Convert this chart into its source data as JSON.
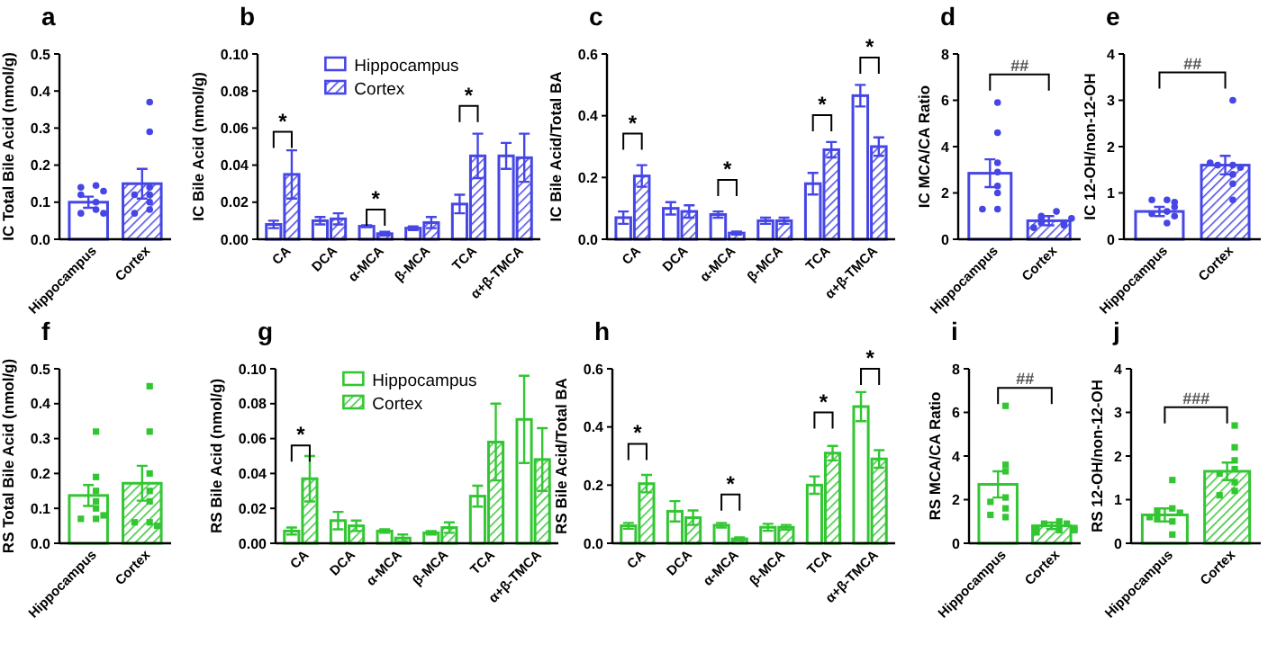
{
  "chart_data": [
    {
      "type": "bar",
      "title": "a",
      "ylabel": "IC Total Bile Acid (nmol/g)",
      "categories": [
        "Hippocampus",
        "Cortex"
      ],
      "ylim": [
        0,
        0.5
      ],
      "yticks": [
        {
          "value": 0,
          "label": "0.0"
        },
        0.1,
        0.2,
        0.3,
        0.4,
        0.5
      ],
      "series": [
        {
          "color": "#4646e6",
          "values": [
            0.1,
            0.15
          ],
          "errors": [
            0.015,
            0.04
          ]
        },
        {
          "type": "scatter",
          "color": "#4646e6",
          "marker": "circle",
          "x": [
            "Hippocampus",
            "Hippocampus",
            "Hippocampus",
            "Hippocampus",
            "Hippocampus",
            "Hippocampus",
            "Hippocampus",
            "Hippocampus",
            "Cortex",
            "Cortex",
            "Cortex",
            "Cortex",
            "Cortex",
            "Cortex",
            "Cortex",
            "Cortex"
          ],
          "values": [
            0.145,
            0.14,
            0.13,
            0.12,
            0.1,
            0.08,
            0.07,
            0.07,
            0.37,
            0.29,
            0.14,
            0.12,
            0.1,
            0.08,
            0.07,
            0.12
          ]
        }
      ]
    },
    {
      "type": "bar",
      "title": "b",
      "ylabel": "IC Bile Acid (nmol/g)",
      "categories": [
        "CA",
        "DCA",
        "α-MCA",
        "β-MCA",
        "TCA",
        "α+β-TMCA"
      ],
      "ylim": [
        0,
        0.1
      ],
      "yticks": [
        {
          "value": 0,
          "label": "0.00"
        },
        {
          "value": 0.02,
          "label": "0.02"
        },
        {
          "value": 0.04,
          "label": "0.04"
        },
        {
          "value": 0.06,
          "label": "0.06"
        },
        {
          "value": 0.08,
          "label": "0.08"
        },
        {
          "value": 0.1,
          "label": "0.10"
        }
      ],
      "legend": "top",
      "series": [
        {
          "name": "Hippocampus",
          "color": "#4646e6",
          "values": [
            0.008,
            0.01,
            0.007,
            0.006,
            0.019,
            0.045
          ],
          "errors": [
            0.002,
            0.002,
            0.0005,
            0.001,
            0.005,
            0.007
          ]
        },
        {
          "name": "Cortex",
          "color": "#4646e6",
          "values": [
            0.035,
            0.011,
            0.003,
            0.009,
            0.045,
            0.044
          ],
          "errors": [
            0.013,
            0.003,
            0.001,
            0.003,
            0.012,
            0.013
          ]
        }
      ],
      "annotations": [
        "*",
        "*",
        "*"
      ]
    },
    {
      "type": "bar",
      "title": "c",
      "ylabel": "IC Bile Acid/Total BA",
      "categories": [
        "CA",
        "DCA",
        "α-MCA",
        "β-MCA",
        "TCA",
        "α+β-TMCA"
      ],
      "ylim": [
        0,
        0.6
      ],
      "yticks": [
        {
          "value": 0,
          "label": "0.0"
        },
        {
          "value": 0.2,
          "label": "0.2"
        },
        {
          "value": 0.4,
          "label": "0.4"
        },
        {
          "value": 0.6,
          "label": "0.6"
        }
      ],
      "series": [
        {
          "color": "#4646e6",
          "values": [
            0.07,
            0.1,
            0.08,
            0.06,
            0.18,
            0.465
          ],
          "errors": [
            0.02,
            0.02,
            0.01,
            0.01,
            0.035,
            0.035
          ]
        },
        {
          "color": "#4646e6",
          "values": [
            0.205,
            0.09,
            0.02,
            0.06,
            0.29,
            0.3
          ],
          "errors": [
            0.035,
            0.02,
            0.005,
            0.01,
            0.025,
            0.03
          ]
        }
      ],
      "annotations": [
        "*",
        "*",
        "*",
        "*"
      ]
    },
    {
      "type": "bar",
      "title": "d",
      "ylabel": "IC MCA/CA Ratio",
      "categories": [
        "Hippocampus",
        "Cortex"
      ],
      "ylim": [
        0,
        8
      ],
      "yticks": [
        0,
        2,
        4,
        6,
        8
      ],
      "series": [
        {
          "color": "#4646e6",
          "values": [
            2.85,
            0.8
          ],
          "errors": [
            0.6,
            0.2
          ]
        },
        {
          "type": "scatter",
          "color": "#4646e6",
          "marker": "circle",
          "x": [
            "Hippocampus",
            "Hippocampus",
            "Hippocampus",
            "Hippocampus",
            "Hippocampus",
            "Hippocampus",
            "Hippocampus",
            "Hippocampus",
            "Cortex",
            "Cortex",
            "Cortex",
            "Cortex",
            "Cortex",
            "Cortex",
            "Cortex",
            "Cortex"
          ],
          "values": [
            5.9,
            4.6,
            3.3,
            2.3,
            2.0,
            1.3,
            1.3,
            2.9,
            1.2,
            1.0,
            0.9,
            0.7,
            0.7,
            0.6,
            0.5,
            0.9
          ]
        }
      ],
      "annotations": [
        "##"
      ]
    },
    {
      "type": "bar",
      "title": "e",
      "ylabel": "IC 12-OH/non-12-OH",
      "categories": [
        "Hippocampus",
        "Cortex"
      ],
      "ylim": [
        0,
        4
      ],
      "yticks": [
        0,
        1,
        2,
        3,
        4
      ],
      "series": [
        {
          "color": "#4646e6",
          "values": [
            0.6,
            1.6
          ],
          "errors": [
            0.1,
            0.2
          ]
        },
        {
          "type": "scatter",
          "color": "#4646e6",
          "marker": "circle",
          "x": [
            "Hippocampus",
            "Hippocampus",
            "Hippocampus",
            "Hippocampus",
            "Hippocampus",
            "Hippocampus",
            "Hippocampus",
            "Hippocampus",
            "Cortex",
            "Cortex",
            "Cortex",
            "Cortex",
            "Cortex",
            "Cortex",
            "Cortex",
            "Cortex"
          ],
          "values": [
            0.85,
            0.85,
            0.8,
            0.6,
            0.55,
            0.5,
            0.35,
            0.7,
            3.0,
            1.6,
            1.6,
            1.55,
            1.4,
            1.2,
            0.85,
            1.65
          ]
        }
      ],
      "annotations": [
        "##"
      ]
    },
    {
      "type": "bar",
      "title": "f",
      "ylabel": "RS Total Bile Acid (nmol/g)",
      "categories": [
        "Hippocampus",
        "Cortex"
      ],
      "ylim": [
        0,
        0.5
      ],
      "yticks": [
        {
          "value": 0,
          "label": "0.0"
        },
        0.1,
        0.2,
        0.3,
        0.4,
        0.5
      ],
      "series": [
        {
          "color": "#33c633",
          "values": [
            0.137,
            0.172
          ],
          "errors": [
            0.03,
            0.05
          ]
        },
        {
          "type": "scatter",
          "color": "#33c633",
          "marker": "square",
          "x": [
            "Hippocampus",
            "Hippocampus",
            "Hippocampus",
            "Hippocampus",
            "Hippocampus",
            "Hippocampus",
            "Hippocampus",
            "Hippocampus",
            "Cortex",
            "Cortex",
            "Cortex",
            "Cortex",
            "Cortex",
            "Cortex",
            "Cortex",
            "Cortex"
          ],
          "values": [
            0.32,
            0.19,
            0.15,
            0.12,
            0.1,
            0.07,
            0.07,
            0.08,
            0.45,
            0.32,
            0.2,
            0.15,
            0.12,
            0.06,
            0.06,
            0.05
          ]
        }
      ]
    },
    {
      "type": "bar",
      "title": "g",
      "ylabel": "RS Bile Acid (nmol/g)",
      "categories": [
        "CA",
        "DCA",
        "α-MCA",
        "β-MCA",
        "TCA",
        "α+β-TMCA"
      ],
      "ylim": [
        0,
        0.1
      ],
      "yticks": [
        {
          "value": 0,
          "label": "0.00"
        },
        {
          "value": 0.02,
          "label": "0.02"
        },
        {
          "value": 0.04,
          "label": "0.04"
        },
        {
          "value": 0.06,
          "label": "0.06"
        },
        {
          "value": 0.08,
          "label": "0.08"
        },
        {
          "value": 0.1,
          "label": "0.10"
        }
      ],
      "legend": "top",
      "series": [
        {
          "name": "Hippocampus",
          "color": "#33c633",
          "values": [
            0.007,
            0.013,
            0.007,
            0.006,
            0.027,
            0.071
          ],
          "errors": [
            0.002,
            0.005,
            0.001,
            0.001,
            0.006,
            0.025
          ]
        },
        {
          "name": "Cortex",
          "color": "#33c633",
          "values": [
            0.037,
            0.01,
            0.003,
            0.009,
            0.058,
            0.048
          ],
          "errors": [
            0.013,
            0.003,
            0.002,
            0.003,
            0.022,
            0.018
          ]
        }
      ],
      "annotations": [
        "*"
      ]
    },
    {
      "type": "bar",
      "title": "h",
      "ylabel": "RS Bile Acid/Total BA",
      "categories": [
        "CA",
        "DCA",
        "α-MCA",
        "β-MCA",
        "TCA",
        "α+β-TMCA"
      ],
      "ylim": [
        0,
        0.6
      ],
      "yticks": [
        {
          "value": 0,
          "label": "0.0"
        },
        {
          "value": 0.2,
          "label": "0.2"
        },
        {
          "value": 0.4,
          "label": "0.4"
        },
        {
          "value": 0.6,
          "label": "0.6"
        }
      ],
      "series": [
        {
          "color": "#33c633",
          "values": [
            0.06,
            0.11,
            0.062,
            0.055,
            0.2,
            0.47
          ],
          "errors": [
            0.01,
            0.035,
            0.008,
            0.012,
            0.03,
            0.05
          ]
        },
        {
          "color": "#33c633",
          "values": [
            0.205,
            0.088,
            0.015,
            0.055,
            0.31,
            0.29
          ],
          "errors": [
            0.03,
            0.025,
            0.005,
            0.008,
            0.025,
            0.03
          ]
        }
      ],
      "annotations": [
        "*",
        "*",
        "*",
        "*"
      ]
    },
    {
      "type": "bar",
      "title": "i",
      "ylabel": "RS MCA/CA Ratio",
      "categories": [
        "Hippocampus",
        "Cortex"
      ],
      "ylim": [
        0,
        8
      ],
      "yticks": [
        0,
        2,
        4,
        6,
        8
      ],
      "series": [
        {
          "color": "#33c633",
          "values": [
            2.7,
            0.8
          ],
          "errors": [
            0.6,
            0.15
          ]
        },
        {
          "type": "scatter",
          "color": "#33c633",
          "marker": "square",
          "x": [
            "Hippocampus",
            "Hippocampus",
            "Hippocampus",
            "Hippocampus",
            "Hippocampus",
            "Hippocampus",
            "Hippocampus",
            "Hippocampus",
            "Cortex",
            "Cortex",
            "Cortex",
            "Cortex",
            "Cortex",
            "Cortex",
            "Cortex",
            "Cortex"
          ],
          "values": [
            6.3,
            3.6,
            3.3,
            2.1,
            1.9,
            1.2,
            1.3,
            1.6,
            1.0,
            0.9,
            0.9,
            0.6,
            0.7,
            0.7,
            0.5,
            0.6
          ]
        }
      ],
      "annotations": [
        "##"
      ]
    },
    {
      "type": "bar",
      "title": "j",
      "ylabel": "RS 12-OH/non-12-OH",
      "categories": [
        "Hippocampus",
        "Cortex"
      ],
      "ylim": [
        0,
        4
      ],
      "yticks": [
        0,
        1,
        2,
        3,
        4
      ],
      "series": [
        {
          "color": "#33c633",
          "values": [
            0.65,
            1.65
          ],
          "errors": [
            0.15,
            0.2
          ]
        },
        {
          "type": "scatter",
          "color": "#33c633",
          "marker": "square",
          "x": [
            "Hippocampus",
            "Hippocampus",
            "Hippocampus",
            "Hippocampus",
            "Hippocampus",
            "Hippocampus",
            "Hippocampus",
            "Hippocampus",
            "Cortex",
            "Cortex",
            "Cortex",
            "Cortex",
            "Cortex",
            "Cortex",
            "Cortex",
            "Cortex"
          ],
          "values": [
            1.45,
            0.8,
            0.75,
            0.7,
            0.5,
            0.55,
            0.2,
            0.6,
            2.7,
            2.2,
            1.9,
            1.7,
            1.6,
            1.4,
            1.2,
            1.1
          ]
        }
      ],
      "annotations": [
        "###"
      ]
    }
  ]
}
